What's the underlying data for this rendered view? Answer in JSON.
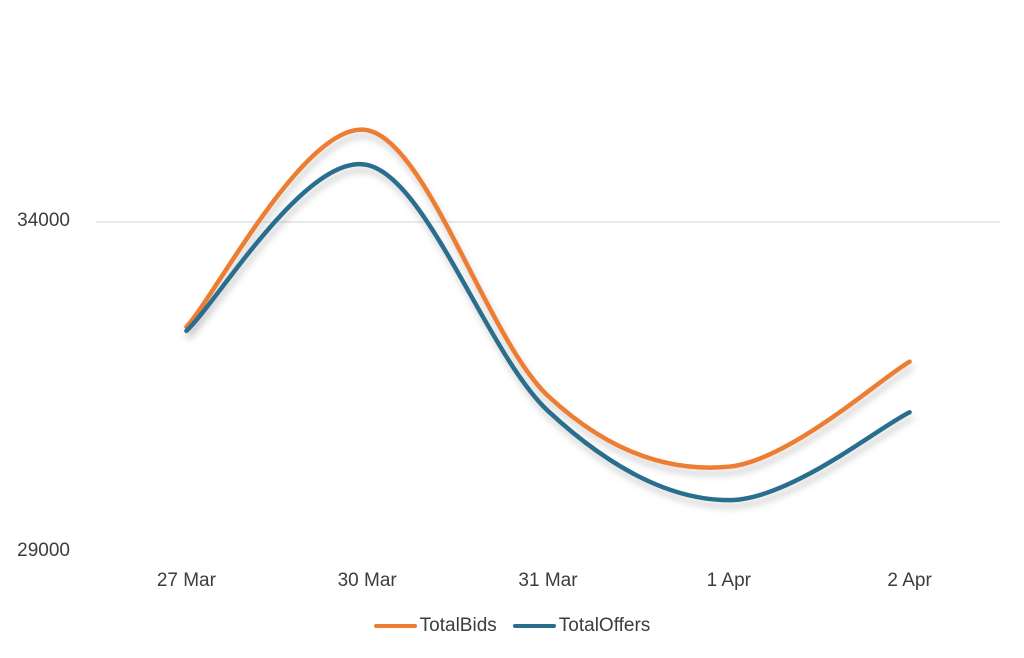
{
  "chart_data": {
    "type": "line",
    "smooth": true,
    "title": "",
    "xlabel": "",
    "ylabel": "",
    "categories": [
      "27 Mar",
      "30 Mar",
      "31 Mar",
      "1 Apr",
      "2 Apr"
    ],
    "series": [
      {
        "name": "TotalBids",
        "color": "#ED7D31",
        "values": [
          32400,
          35400,
          31350,
          30270,
          31870
        ]
      },
      {
        "name": "TotalOffers",
        "color": "#2A6E8E",
        "values": [
          32340,
          34870,
          31120,
          29760,
          31100
        ]
      }
    ],
    "y_axis": {
      "tick_labels": [
        "29000",
        "34000"
      ],
      "ticks": [
        29000,
        34000
      ],
      "major_unit": 5000
    },
    "gridlines": {
      "values": [
        34000
      ],
      "color": "#E9E9E9"
    },
    "legend_position": "bottom-center",
    "background_color": "#FFFFFF",
    "text_color": "#3d3d3d"
  }
}
